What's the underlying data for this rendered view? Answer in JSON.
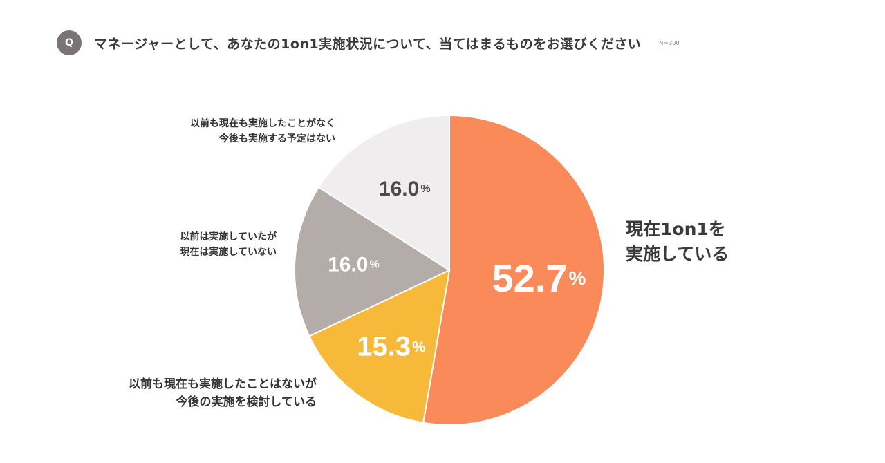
{
  "header": {
    "badge": "Q",
    "question": "マネージャーとして、あなたの1on1実施状況について、当てはまるものをお選びください",
    "sample_size": "N＝300"
  },
  "chart_data": {
    "type": "pie",
    "title": "マネージャーとして、あなたの1on1実施状況について、当てはまるものをお選びください",
    "unit": "%",
    "slices": [
      {
        "label_lines": [
          "現在1on1を",
          "実施している"
        ],
        "value": 52.7,
        "value_text": "52.7",
        "color": "#fa8a5a",
        "text_color": "#ffffff"
      },
      {
        "label_lines": [
          "以前も現在も実施したことはないが",
          "今後の実施を検討している"
        ],
        "value": 15.3,
        "value_text": "15.3",
        "color": "#f7b93a",
        "text_color": "#ffffff"
      },
      {
        "label_lines": [
          "以前は実施していたが",
          "現在は実施していない"
        ],
        "value": 16.0,
        "value_text": "16.0",
        "color": "#b3aca8",
        "text_color": "#ffffff"
      },
      {
        "label_lines": [
          "以前も現在も実施したことがなく",
          "今後も実施する予定はない"
        ],
        "value": 16.0,
        "value_text": "16.0",
        "color": "#efeded",
        "text_color": "#4a4a4a"
      }
    ]
  }
}
